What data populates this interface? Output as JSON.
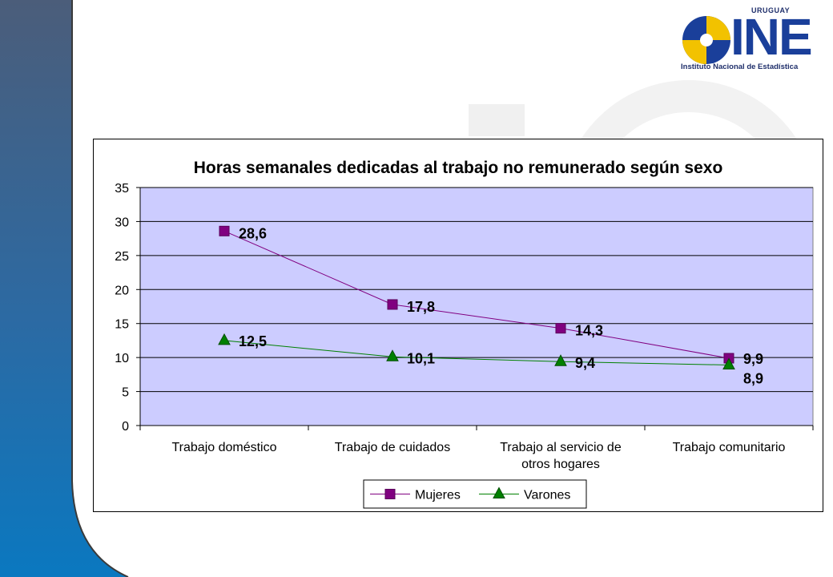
{
  "logo": {
    "top_text": "URUGUAY",
    "brand": "INE",
    "name": "Instituto Nacional de Estadística",
    "colors": {
      "blue": "#1a3f9a",
      "yellow": "#f2c200",
      "navy": "#1f2f6b"
    }
  },
  "theme": {
    "left_band_top": "#4b5d7a",
    "left_band_bottom": "#0a6fb3",
    "plot_bg": "#ccccff",
    "series_colors": [
      "#800080",
      "#008000"
    ]
  },
  "chart_data": {
    "type": "line",
    "title": "Horas semanales dedicadas al trabajo no remunerado según sexo",
    "xlabel": "",
    "ylabel": "",
    "categories": [
      [
        "Trabajo doméstico"
      ],
      [
        "Trabajo de cuidados"
      ],
      [
        "Trabajo al servicio de",
        "otros hogares"
      ],
      [
        "Trabajo comunitario"
      ]
    ],
    "ylim": [
      0,
      35
    ],
    "yticks": [
      "0",
      "5",
      "10",
      "15",
      "20",
      "25",
      "30",
      "35"
    ],
    "grid": "horizontal",
    "legend_position": "bottom",
    "series": [
      {
        "name": "Mujeres",
        "marker": "square",
        "values": [
          28.6,
          17.8,
          14.3,
          9.9
        ],
        "labels": [
          "28,6",
          "17,8",
          "14,3",
          "9,9"
        ]
      },
      {
        "name": "Varones",
        "marker": "triangle",
        "values": [
          12.5,
          10.1,
          9.4,
          8.9
        ],
        "labels": [
          "12,5",
          "10,1",
          "9,4",
          "8,9"
        ]
      }
    ]
  }
}
